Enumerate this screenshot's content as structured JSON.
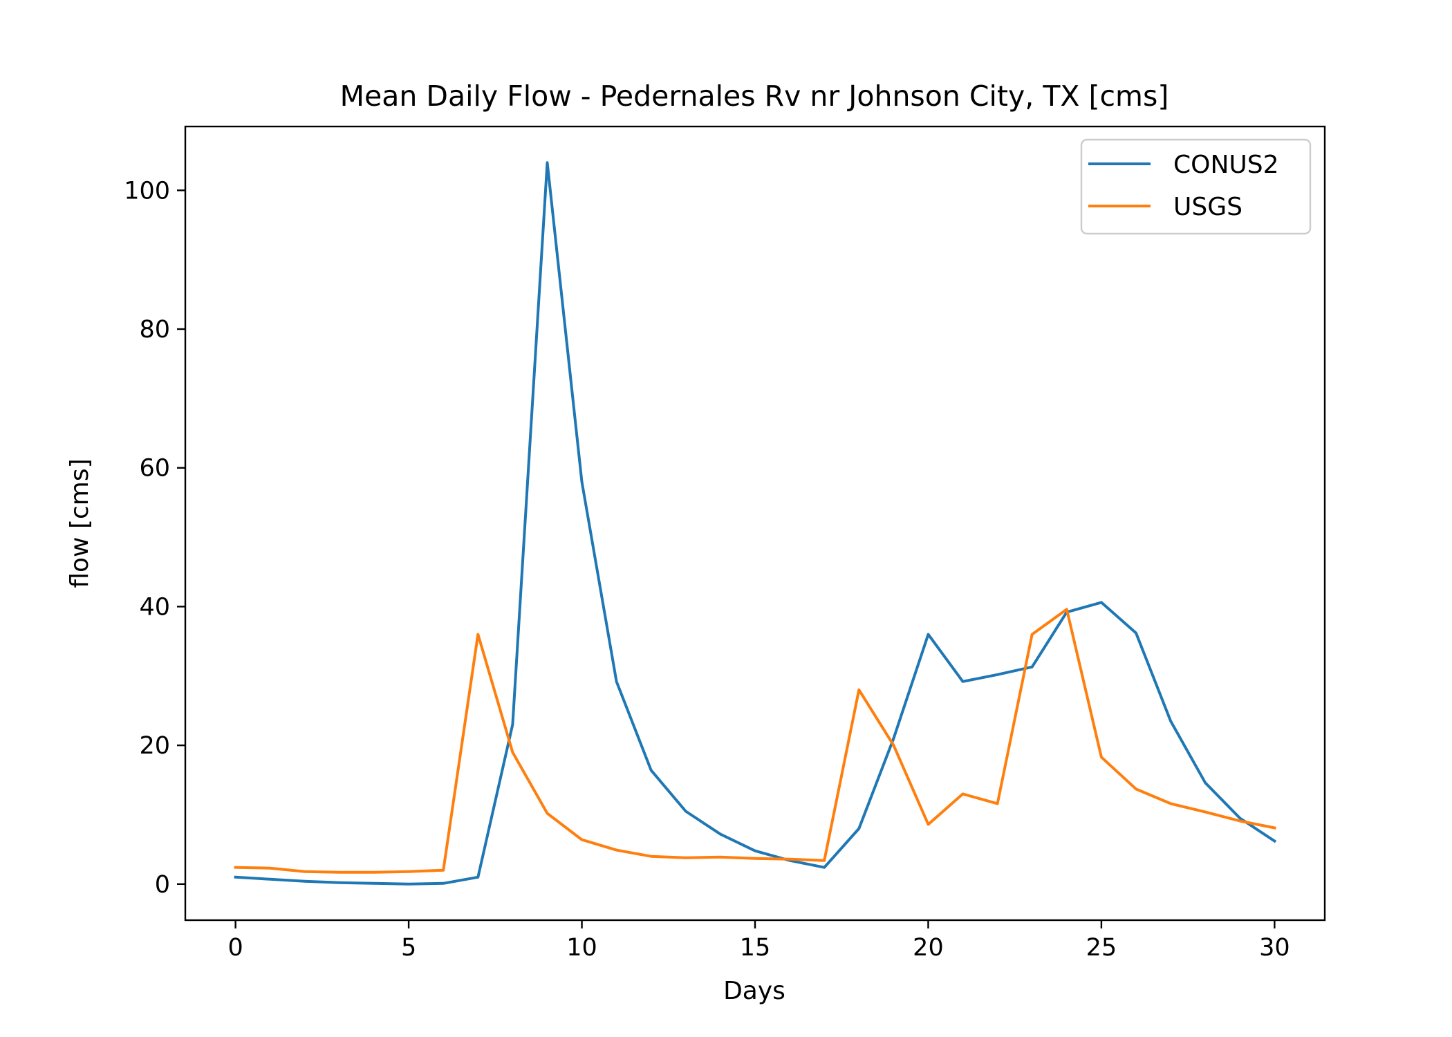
{
  "chart_data": {
    "type": "line",
    "title": "Mean Daily Flow - Pedernales Rv nr Johnson City, TX [cms]",
    "xlabel": "Days",
    "ylabel": "flow [cms]",
    "xlim": [
      -1.45,
      31.45
    ],
    "ylim": [
      -5.2,
      109.2
    ],
    "xticks": [
      0,
      5,
      10,
      15,
      20,
      25,
      30
    ],
    "yticks": [
      0,
      20,
      40,
      60,
      80,
      100
    ],
    "xtick_labels": [
      "0",
      "5",
      "10",
      "15",
      "20",
      "25",
      "30"
    ],
    "ytick_labels": [
      "0",
      "20",
      "40",
      "60",
      "80",
      "100"
    ],
    "grid": false,
    "legend_position": "top-right",
    "x": [
      0,
      1,
      2,
      3,
      4,
      5,
      6,
      7,
      8,
      9,
      10,
      11,
      12,
      13,
      14,
      15,
      16,
      17,
      18,
      19,
      20,
      21,
      22,
      23,
      24,
      25,
      26,
      27,
      28,
      29,
      30
    ],
    "series": [
      {
        "name": "CONUS2",
        "color": "#1f77b4",
        "values": [
          1.0,
          0.7,
          0.4,
          0.2,
          0.1,
          0.0,
          0.1,
          1.0,
          23.0,
          104.0,
          58.0,
          29.2,
          16.4,
          10.5,
          7.2,
          4.8,
          3.4,
          2.4,
          8.0,
          21.0,
          36.0,
          29.2,
          30.2,
          31.3,
          39.2,
          40.6,
          36.2,
          23.5,
          14.6,
          9.5,
          6.2
        ]
      },
      {
        "name": "USGS",
        "color": "#ff7f0e",
        "values": [
          2.4,
          2.3,
          1.8,
          1.7,
          1.7,
          1.8,
          2.0,
          36.0,
          19.0,
          10.2,
          6.4,
          4.9,
          4.0,
          3.8,
          3.9,
          3.7,
          3.6,
          3.4,
          28.0,
          20.0,
          8.6,
          13.0,
          11.6,
          36.0,
          39.6,
          18.3,
          13.7,
          11.6,
          10.4,
          9.1,
          8.1
        ]
      }
    ]
  }
}
